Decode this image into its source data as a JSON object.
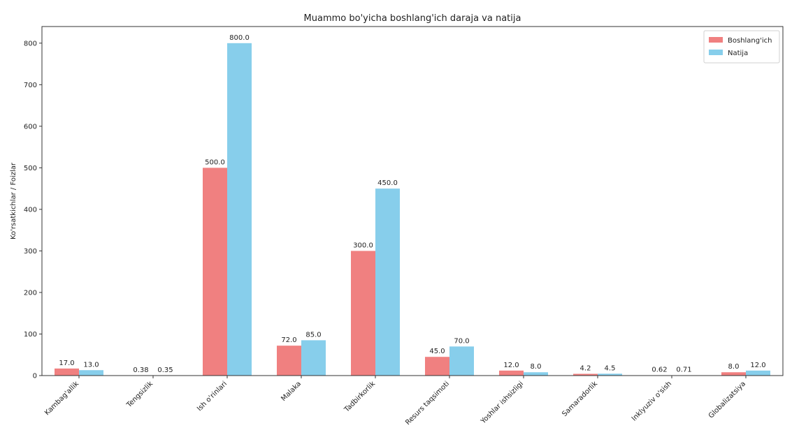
{
  "chart_data": {
    "type": "bar",
    "title": "Muammo bo'yicha boshlang'ich daraja va natija",
    "xlabel": "",
    "ylabel": "Ko'rsatkichlar / Foizlar",
    "ylim": [
      0,
      840
    ],
    "yticks": [
      0,
      100,
      200,
      300,
      400,
      500,
      600,
      700,
      800
    ],
    "grid": false,
    "legend_position": "top-right",
    "categories": [
      "Kambag'allik",
      "Tengsizlik",
      "Ish o'rinlari",
      "Malaka",
      "Tadbirkorlik",
      "Resurs taqsimoti",
      "Yoshlar ishsizligi",
      "Samaradorlik",
      "Inklyuziv o'sish",
      "Globalizatsiya"
    ],
    "series": [
      {
        "name": "Boshlang'ich",
        "color": "#f08080",
        "values": [
          17.0,
          0.38,
          500.0,
          72.0,
          300.0,
          45.0,
          12.0,
          4.2,
          0.62,
          8.0
        ],
        "labels": [
          "17.0",
          "0.38",
          "500.0",
          "72.0",
          "300.0",
          "45.0",
          "12.0",
          "4.2",
          "0.62",
          "8.0"
        ]
      },
      {
        "name": "Natija",
        "color": "#87ceeb",
        "values": [
          13.0,
          0.35,
          800.0,
          85.0,
          450.0,
          70.0,
          8.0,
          4.5,
          0.71,
          12.0
        ],
        "labels": [
          "13.0",
          "0.35",
          "800.0",
          "85.0",
          "450.0",
          "70.0",
          "8.0",
          "4.5",
          "0.71",
          "12.0"
        ]
      }
    ]
  }
}
